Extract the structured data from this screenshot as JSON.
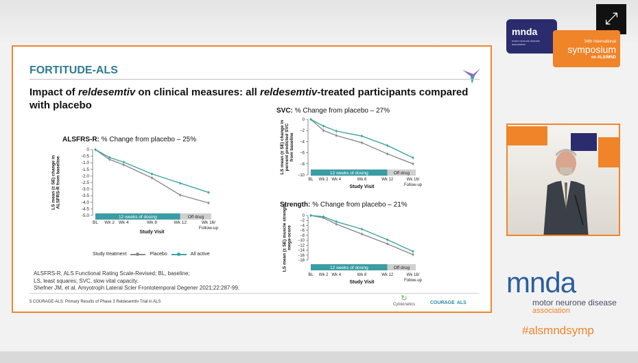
{
  "colors": {
    "accent": "#f0862b",
    "title_blue": "#2d7b93",
    "placebo": "#8a8a8a",
    "active": "#3aa3a3",
    "dosing_bar": "#3a9da4"
  },
  "window": {
    "expand_icon": "expand-icon",
    "expand_glyph": "⤢"
  },
  "slide": {
    "title": "FORTITUDE-ALS",
    "subtitle_parts": [
      "Impact of ",
      "reldesemtiv",
      " on clinical measures: all ",
      "reldesemtiv",
      "-treated participants compared with placebo"
    ],
    "legend": {
      "label": "Study treatment",
      "placebo": "Placebo",
      "active": "All active"
    },
    "footnotes": [
      "ALSFRS-R, ALS Functional Rating Scale-Revised; BL, baseline;",
      "LS, least squares; SVC, slow vital capacity.",
      "Shefner JM, et al. Amyotroph Lateral Scler Frontotemporal Degener 2021;22:287-99."
    ],
    "footer": "5    COURAGE-ALS: Primary Results of Phase 3 Reldesemtiv Trial in ALS",
    "sponsor": "Cytokinetics",
    "brand": "COURAGE",
    "brand_suffix": "ALS"
  },
  "chart_data": [
    {
      "type": "line",
      "title": "ALSFRS-R:",
      "subtitle": "% Change from placebo – 25%",
      "ylabel": "LS mean (± SE) change in ALSFRS-R from baseline",
      "xlabel": "Study Visit",
      "x": [
        "BL",
        "Wk 2",
        "Wk 4",
        "Wk 8",
        "Wk 12",
        "Wk 16/ Follow-up"
      ],
      "x_pos": [
        0,
        2,
        4,
        8,
        12,
        16
      ],
      "ylim": [
        -5.0,
        0
      ],
      "yticks": [
        "0",
        "-0.5",
        "-1.0",
        "-1.5",
        "-2.0",
        "-2.5",
        "-3.0",
        "-3.5",
        "-4.0",
        "-4.5",
        "-5.0"
      ],
      "ytick_values": [
        0,
        -0.5,
        -1.0,
        -1.5,
        -2.0,
        -2.5,
        -3.0,
        -3.5,
        -4.0,
        -4.5,
        -5.0
      ],
      "series": [
        {
          "name": "Placebo",
          "values": [
            0,
            -0.75,
            -1.15,
            -2.15,
            -3.45,
            -4.05
          ]
        },
        {
          "name": "All active",
          "values": [
            0,
            -0.6,
            -0.95,
            -1.85,
            -2.55,
            -3.25
          ]
        }
      ],
      "dosing_label": "12 weeks of dosing",
      "offdrug_label": "Off drug"
    },
    {
      "type": "line",
      "title": "SVC:",
      "subtitle": "% Change from placebo – 27%",
      "ylabel": "LS mean (± SE) change in percent predicted SVC from baseline",
      "xlabel": "Study Visit",
      "x": [
        "BL",
        "Wk 2",
        "Wk 4",
        "Wk 8",
        "Wk 12",
        "Wk 16/ Follow-up"
      ],
      "x_pos": [
        0,
        2,
        4,
        8,
        12,
        16
      ],
      "ylim": [
        -10,
        0
      ],
      "yticks": [
        "0",
        "−2",
        "−4",
        "−6",
        "−8",
        "−10"
      ],
      "ytick_values": [
        0,
        -2,
        -4,
        -6,
        -8,
        -10
      ],
      "series": [
        {
          "name": "Placebo",
          "values": [
            0,
            -2.0,
            -2.9,
            -4.2,
            -6.2,
            -8.0
          ]
        },
        {
          "name": "All active",
          "values": [
            0,
            -1.2,
            -2.1,
            -3.0,
            -4.7,
            -6.9
          ]
        }
      ],
      "dosing_label": "12 weeks of dosing",
      "offdrug_label": "Off drug"
    },
    {
      "type": "line",
      "title": "Strength:",
      "subtitle": "% Change from placebo – 21%",
      "ylabel": "LS mean (± SE) muscle strength mega-score",
      "xlabel": "Study Visit",
      "x": [
        "BL",
        "Wk 2",
        "Wk 4",
        "Wk 8",
        "Wk 12",
        "Wk 16/ Follow-up"
      ],
      "x_pos": [
        0,
        2,
        4,
        8,
        12,
        16
      ],
      "ylim": [
        -18,
        0
      ],
      "yticks": [
        "0",
        "−2",
        "−4",
        "−6",
        "−8",
        "−10",
        "−12",
        "−14",
        "−16",
        "−18"
      ],
      "ytick_values": [
        0,
        -2,
        -4,
        -6,
        -8,
        -10,
        -12,
        -14,
        -16,
        -18
      ],
      "series": [
        {
          "name": "Placebo",
          "values": [
            0,
            -1.0,
            -3.5,
            -7.5,
            -11.5,
            -15.8
          ]
        },
        {
          "name": "All active",
          "values": [
            0,
            -0.5,
            -2.5,
            -5.5,
            -9.8,
            -14.5
          ]
        }
      ],
      "dosing_label": "12 weeks of dosing",
      "offdrug_label": "Off drug"
    }
  ],
  "side": {
    "small_logo_text": "mnda",
    "small_logo_sub": "motor neurone disease association",
    "symposium_edition": "34th International",
    "symposium_word": "symposium",
    "symposium_sub": "on ALS/MND",
    "big_logo_text": "mnda",
    "big_logo_line1": "motor neurone disease",
    "big_logo_line2": "association",
    "hashtag": "#alsmndsymp"
  }
}
